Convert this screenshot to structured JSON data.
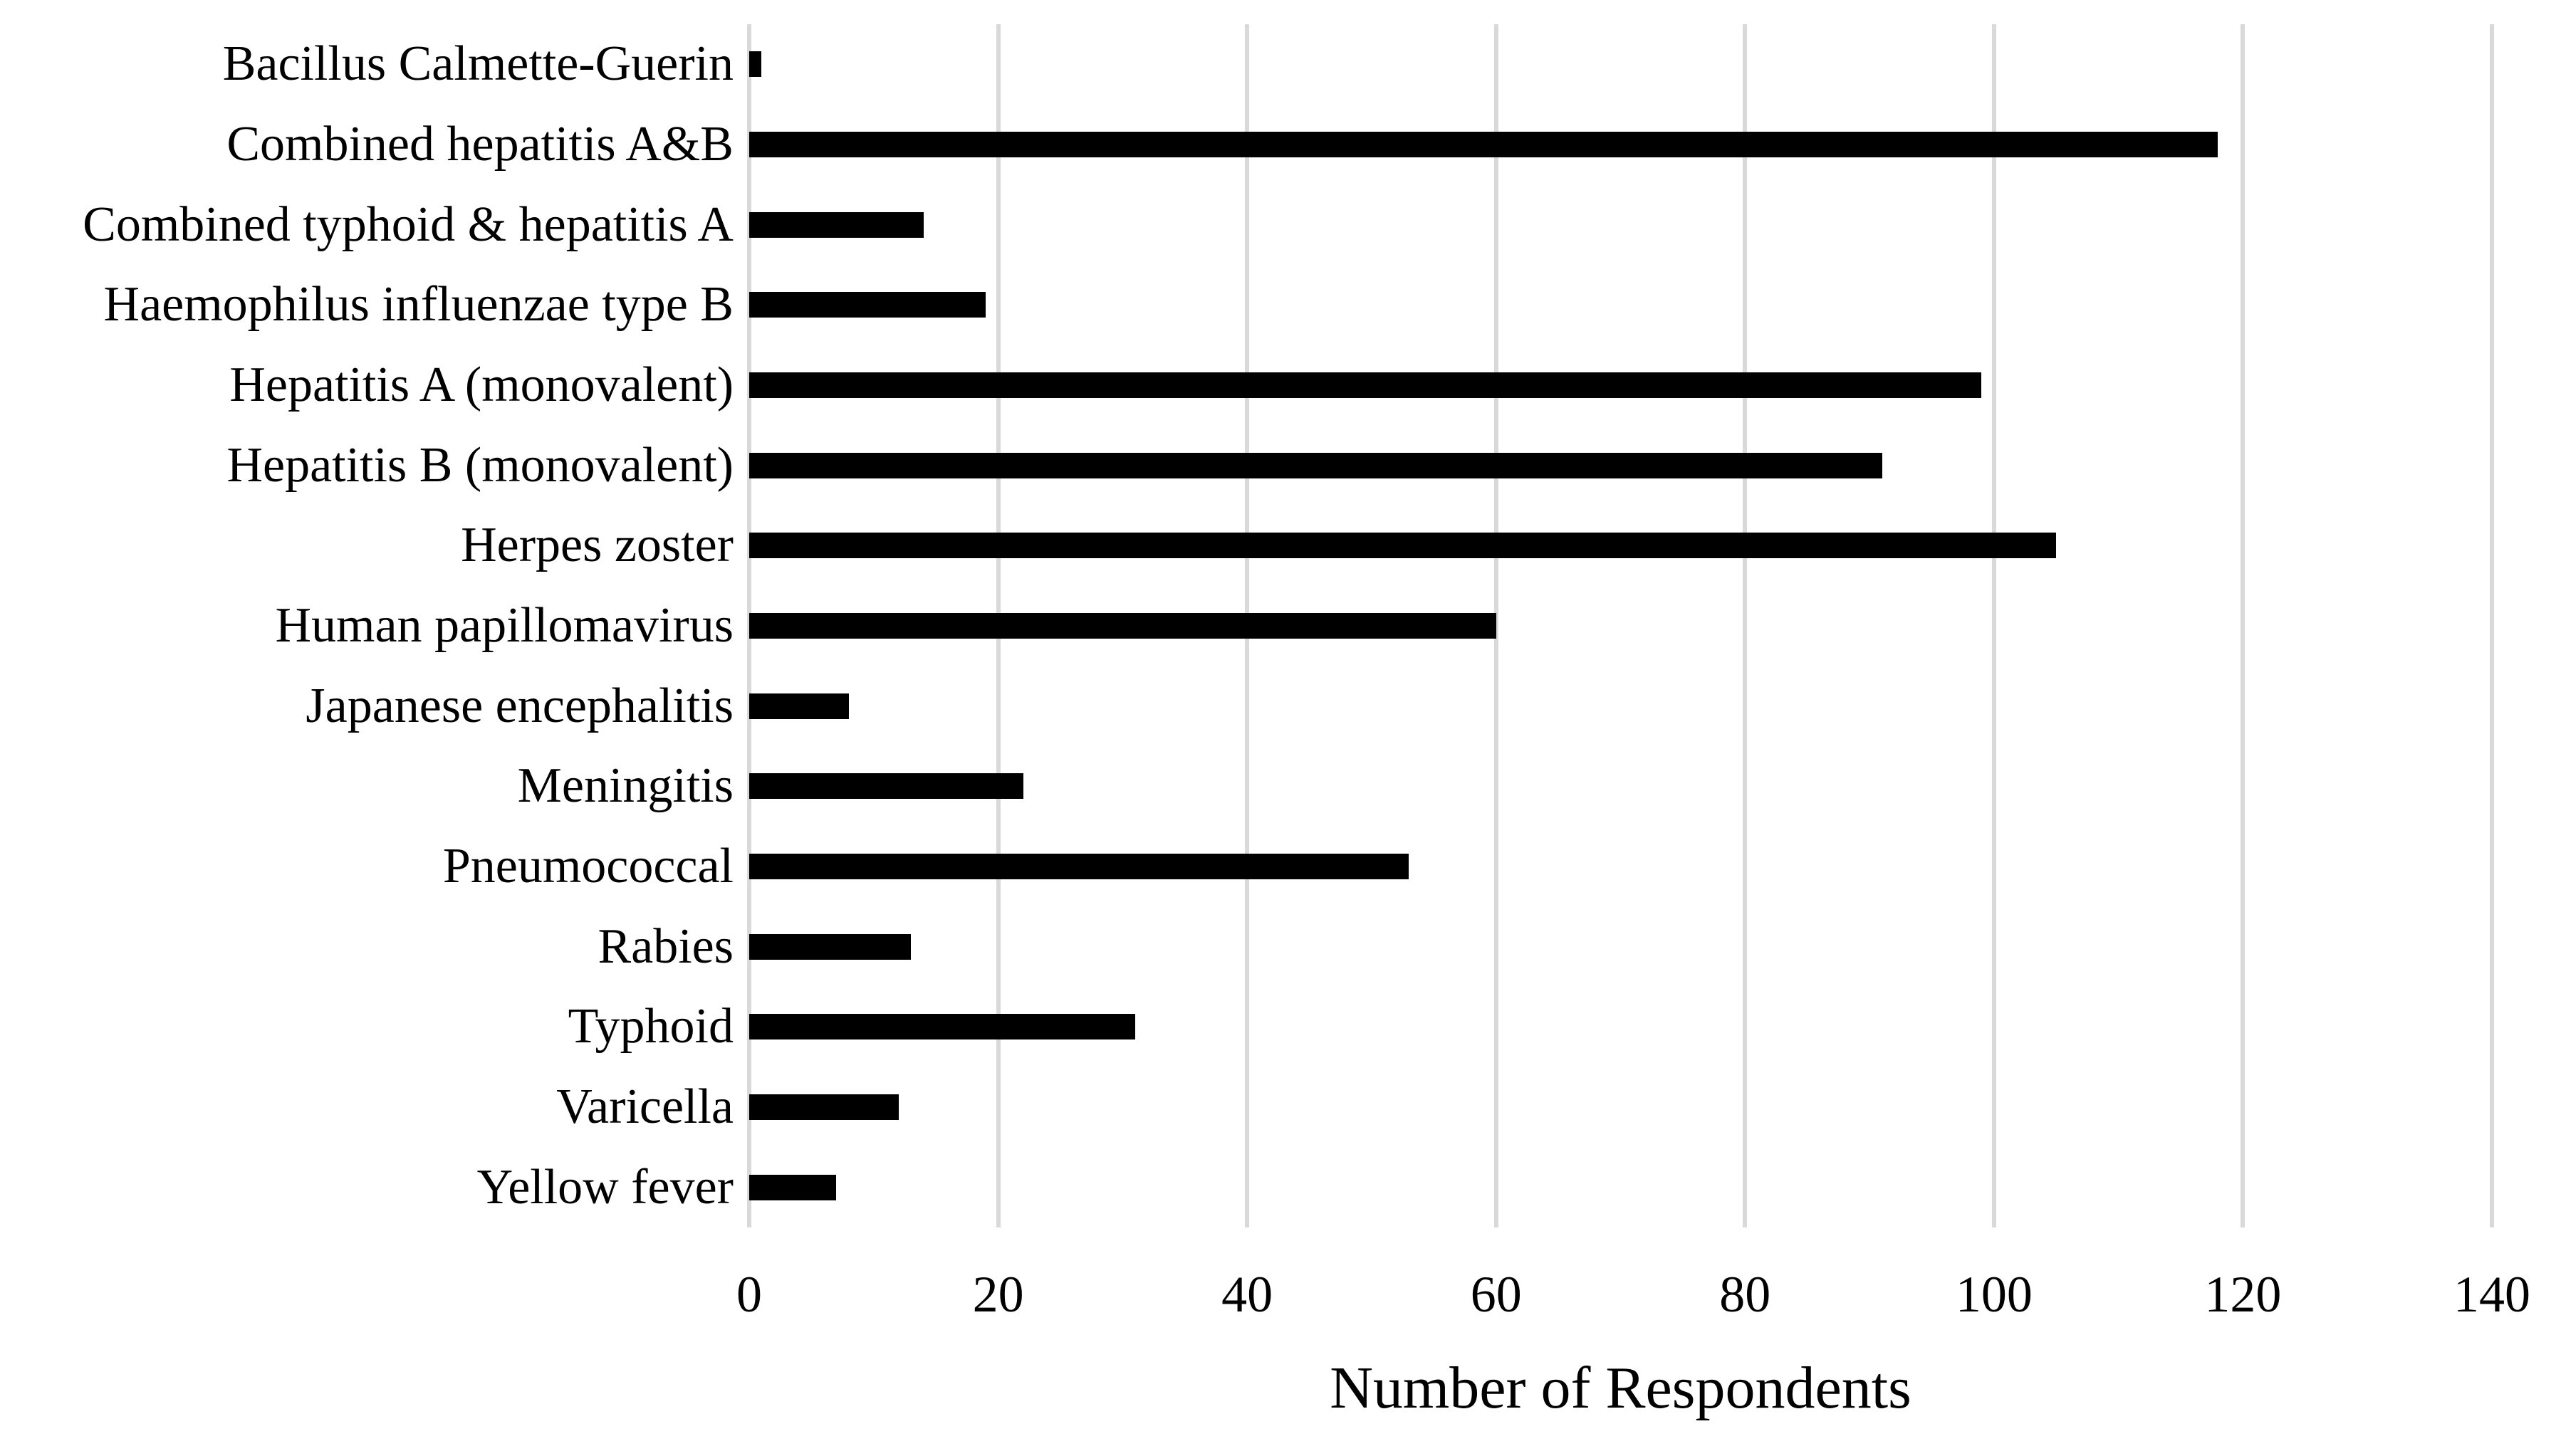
{
  "chart_data": {
    "type": "bar",
    "orientation": "horizontal",
    "title": "",
    "xlabel": "Number of Respondents",
    "ylabel": "",
    "categories": [
      "Bacillus Calmette-Guerin",
      "Combined hepatitis A&B",
      "Combined typhoid & hepatitis A",
      "Haemophilus influenzae type B",
      "Hepatitis A (monovalent)",
      "Hepatitis B (monovalent)",
      "Herpes zoster",
      "Human papillomavirus",
      "Japanese encephalitis",
      "Meningitis",
      "Pneumococcal",
      "Rabies",
      "Typhoid",
      "Varicella",
      "Yellow fever"
    ],
    "values": [
      1,
      118,
      14,
      19,
      99,
      91,
      105,
      60,
      8,
      22,
      53,
      13,
      31,
      12,
      7
    ],
    "xlim": [
      0,
      140
    ],
    "xticks": [
      0,
      20,
      40,
      60,
      80,
      100,
      120,
      140
    ],
    "grid": "vertical-gridlines-on",
    "legend": "none",
    "colors": {
      "bar": "#000000",
      "gridline": "#d9d9d9",
      "text": "#000000",
      "background": "#ffffff"
    }
  }
}
